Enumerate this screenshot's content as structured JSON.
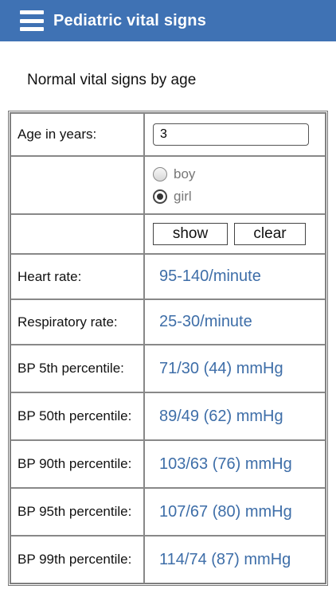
{
  "app": {
    "title": "Pediatric vital signs"
  },
  "subtitle": "Normal vital signs by age",
  "form": {
    "age_label": "Age in years:",
    "age_value": "3",
    "sex_options": [
      {
        "label": "boy",
        "checked": false
      },
      {
        "label": "girl",
        "checked": true
      }
    ],
    "show_label": "show",
    "clear_label": "clear"
  },
  "results": [
    {
      "label": "Heart rate:",
      "value": "95-140/minute"
    },
    {
      "label": "Respiratory rate:",
      "value": "25-30/minute"
    },
    {
      "label": "BP 5th percentile:",
      "value": "71/30 (44) mmHg"
    },
    {
      "label": "BP 50th percentile:",
      "value": "89/49 (62) mmHg"
    },
    {
      "label": "BP 90th percentile:",
      "value": "103/63 (76) mmHg"
    },
    {
      "label": "BP 95th percentile:",
      "value": "107/67 (80) mmHg"
    },
    {
      "label": "BP 99th percentile:",
      "value": "114/74 (87) mmHg"
    }
  ],
  "colors": {
    "appbar": "#3f72b4",
    "value_text": "#3e6ea8"
  }
}
